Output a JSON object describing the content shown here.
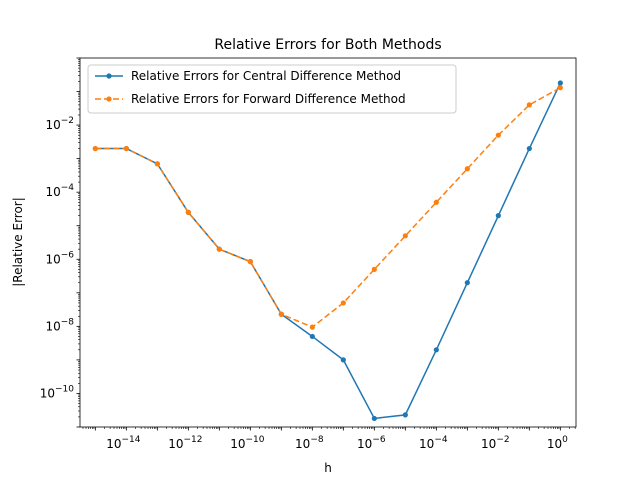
{
  "chart_data": {
    "type": "line",
    "title": "Relative Errors for Both Methods",
    "xlabel": "h",
    "ylabel": "|Relative Error|",
    "xscale": "log",
    "yscale": "log",
    "xlim": [
      3.2e-16,
      3.2
    ],
    "ylim": [
      1e-11,
      1
    ],
    "grid": false,
    "legend_position": "top-left",
    "x": [
      1e-15,
      1e-14,
      1e-13,
      1e-12,
      1e-11,
      1e-10,
      1e-09,
      1e-08,
      1e-07,
      1e-06,
      1e-05,
      0.0001,
      0.001,
      0.01,
      0.1,
      1
    ],
    "series": [
      {
        "name": "Relative Errors for Central Difference Method",
        "color": "#1f77b4",
        "linestyle": "solid",
        "values": [
          0.002,
          0.002,
          0.0007,
          2.5e-05,
          2e-06,
          8.5e-07,
          2.3e-08,
          5e-09,
          1e-09,
          1.8e-11,
          2.3e-11,
          2e-09,
          2e-07,
          2e-05,
          0.002,
          0.18
        ]
      },
      {
        "name": "Relative Errors for Forward Difference Method",
        "color": "#ff7f0e",
        "linestyle": "dashed",
        "values": [
          0.002,
          0.002,
          0.0007,
          2.5e-05,
          2e-06,
          8.5e-07,
          2.3e-08,
          9.5e-09,
          5e-08,
          5e-07,
          5e-06,
          5e-05,
          0.0005,
          0.005,
          0.04,
          0.13
        ]
      }
    ],
    "x_ticks": [
      {
        "value": 1e-14,
        "base": "10",
        "exp": "−14"
      },
      {
        "value": 1e-12,
        "base": "10",
        "exp": "−12"
      },
      {
        "value": 1e-10,
        "base": "10",
        "exp": "−10"
      },
      {
        "value": 1e-08,
        "base": "10",
        "exp": "−8"
      },
      {
        "value": 1e-06,
        "base": "10",
        "exp": "−6"
      },
      {
        "value": 0.0001,
        "base": "10",
        "exp": "−4"
      },
      {
        "value": 0.01,
        "base": "10",
        "exp": "−2"
      },
      {
        "value": 1,
        "base": "10",
        "exp": "0"
      }
    ],
    "y_ticks": [
      {
        "value": 1e-10,
        "base": "10",
        "exp": "−10"
      },
      {
        "value": 1e-08,
        "base": "10",
        "exp": "−8"
      },
      {
        "value": 1e-06,
        "base": "10",
        "exp": "−6"
      },
      {
        "value": 0.0001,
        "base": "10",
        "exp": "−4"
      },
      {
        "value": 0.01,
        "base": "10",
        "exp": "−2"
      }
    ]
  }
}
